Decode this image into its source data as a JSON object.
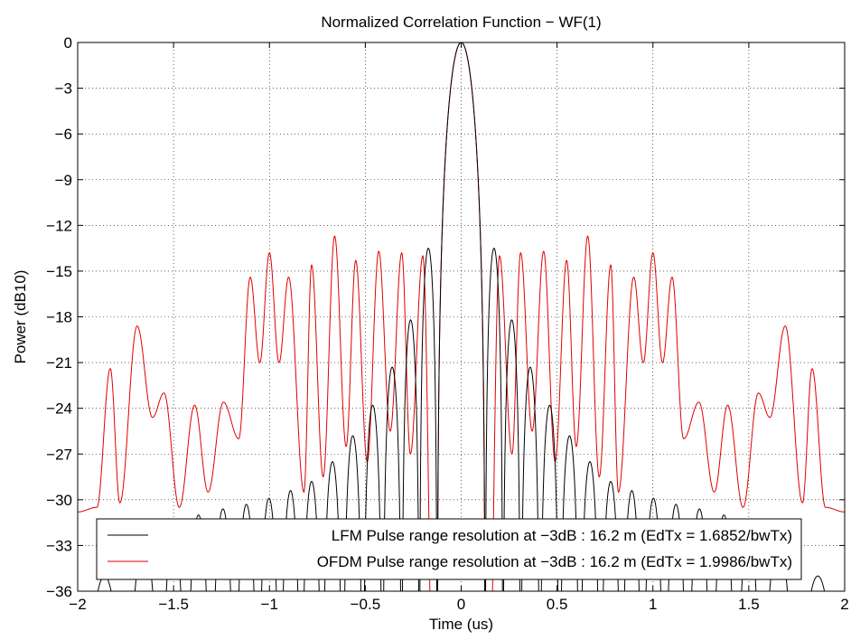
{
  "chart_data": {
    "type": "line",
    "title": "Normalized Correlation Function − WF(1)",
    "xlabel": "Time (us)",
    "ylabel": "Power (dB10)",
    "xlim": [
      -2,
      2
    ],
    "ylim": [
      -36,
      0
    ],
    "xticks": [
      -2,
      -1.5,
      -1,
      -0.5,
      0,
      0.5,
      1,
      1.5,
      2
    ],
    "xtick_labels": [
      "−2",
      "−1.5",
      "−1",
      "−0.5",
      "0",
      "0.5",
      "1",
      "1.5",
      "2"
    ],
    "yticks": [
      0,
      -3,
      -6,
      -9,
      -12,
      -15,
      -18,
      -21,
      -24,
      -27,
      -30,
      -33,
      -36
    ],
    "ytick_labels": [
      "0",
      "−3",
      "−6",
      "−9",
      "−12",
      "−15",
      "−18",
      "−21",
      "−24",
      "−27",
      "−30",
      "−33",
      "−36"
    ],
    "grid": true,
    "legend_position": "bottom-center",
    "series": [
      {
        "name": "LFM Pulse range resolution at −3dB : 16.2 m (EdTx = 1.6852/bwTx)",
        "color": "#000000",
        "mainlobe_null": 0.125,
        "peaks": [
          [
            0,
            0
          ],
          [
            0.175,
            -13.5
          ],
          [
            0.26,
            -18.2
          ],
          [
            0.36,
            -21.3
          ],
          [
            0.46,
            -23.8
          ],
          [
            0.565,
            -25.8
          ],
          [
            0.67,
            -27.5
          ],
          [
            0.78,
            -28.8
          ],
          [
            0.89,
            -29.4
          ],
          [
            1.0,
            -29.9
          ],
          [
            1.12,
            -30.3
          ],
          [
            1.24,
            -30.6
          ],
          [
            1.37,
            -31.0
          ],
          [
            1.5,
            -31.8
          ],
          [
            1.63,
            -32.8
          ],
          [
            1.86,
            -35.0
          ]
        ]
      },
      {
        "name": "OFDM Pulse range resolution at −3dB : 16.2 m (EdTx = 1.9986/bwTx)",
        "color": "#e00000",
        "mainlobe_null": 0.125,
        "peaks": [
          [
            0,
            0
          ],
          [
            0.2,
            -14.0
          ],
          [
            0.31,
            -13.8
          ],
          [
            0.43,
            -13.7
          ],
          [
            0.55,
            -14.3
          ],
          [
            0.66,
            -12.7
          ],
          [
            0.78,
            -14.6
          ],
          [
            0.9,
            -15.4
          ],
          [
            1.0,
            -13.8
          ],
          [
            1.1,
            -15.4
          ],
          [
            1.24,
            -23.6
          ],
          [
            1.39,
            -23.8
          ],
          [
            1.55,
            -23.0
          ],
          [
            1.69,
            -18.6
          ],
          [
            1.83,
            -21.4
          ],
          [
            2.0,
            -30.8
          ]
        ],
        "dips": [
          [
            0.265,
            -27.0
          ],
          [
            0.37,
            -25.5
          ],
          [
            0.49,
            -27.5
          ],
          [
            0.6,
            -26.5
          ],
          [
            0.72,
            -28.5
          ],
          [
            0.82,
            -29.5
          ],
          [
            0.95,
            -21.0
          ],
          [
            1.05,
            -21.0
          ],
          [
            1.16,
            -26.0
          ],
          [
            1.32,
            -29.5
          ],
          [
            1.47,
            -30.5
          ],
          [
            1.61,
            -24.6
          ],
          [
            1.78,
            -30.2
          ],
          [
            1.9,
            -30.5
          ]
        ]
      }
    ]
  }
}
